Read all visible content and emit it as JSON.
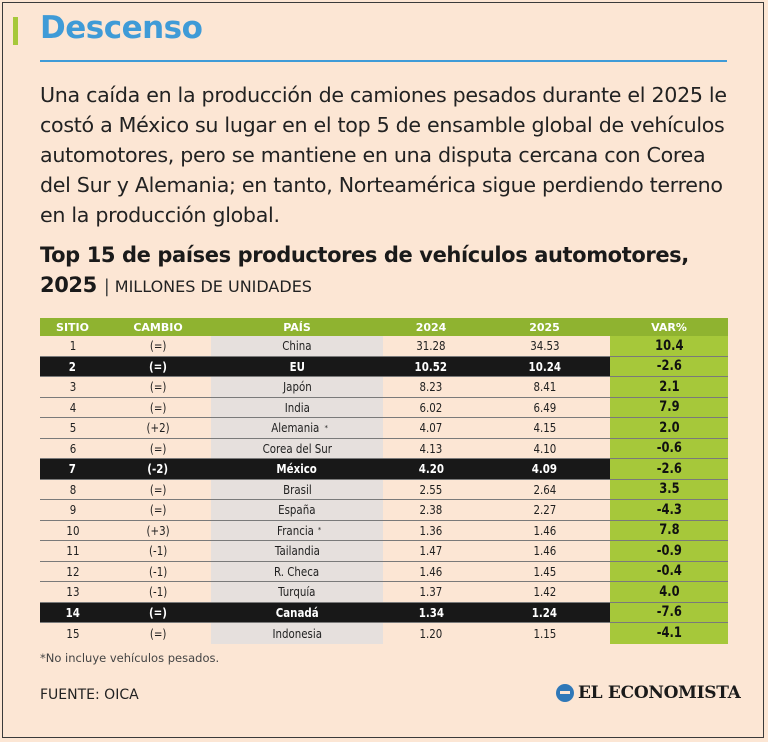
{
  "header": {
    "title": "Descenso",
    "intro": "Una caída en la producción de camiones pesados durante el 2025 le costó a México su lugar en el top 5 de ensamble global de vehículos automotores, pero se mantiene en una disputa cercana con Corea del Sur y Alemania; en tanto, Norteamérica sigue perdiendo terreno en la producción global."
  },
  "chart_data": {
    "type": "table",
    "title": "Top 15 de países productores de vehículos automotores, 2025",
    "unit": "MILLONES DE UNIDADES",
    "columns": [
      "SITIO",
      "CAMBIO",
      "PAÍS",
      "2024",
      "2025",
      "VAR%"
    ],
    "rows": [
      {
        "sitio": "1",
        "cambio": "(=)",
        "pais": "China",
        "y2024": "31.28",
        "y2025": "34.53",
        "var": "10.4",
        "highlight": false,
        "note": false
      },
      {
        "sitio": "2",
        "cambio": "(=)",
        "pais": "EU",
        "y2024": "10.52",
        "y2025": "10.24",
        "var": "-2.6",
        "highlight": true,
        "note": false
      },
      {
        "sitio": "3",
        "cambio": "(=)",
        "pais": "Japón",
        "y2024": "8.23",
        "y2025": "8.41",
        "var": "2.1",
        "highlight": false,
        "note": false
      },
      {
        "sitio": "4",
        "cambio": "(=)",
        "pais": "India",
        "y2024": "6.02",
        "y2025": "6.49",
        "var": "7.9",
        "highlight": false,
        "note": false
      },
      {
        "sitio": "5",
        "cambio": "(+2)",
        "pais": "Alemania",
        "y2024": "4.07",
        "y2025": "4.15",
        "var": "2.0",
        "highlight": false,
        "note": true
      },
      {
        "sitio": "6",
        "cambio": "(=)",
        "pais": "Corea del Sur",
        "y2024": "4.13",
        "y2025": "4.10",
        "var": "-0.6",
        "highlight": false,
        "note": false
      },
      {
        "sitio": "7",
        "cambio": "(-2)",
        "pais": "México",
        "y2024": "4.20",
        "y2025": "4.09",
        "var": "-2.6",
        "highlight": true,
        "note": false
      },
      {
        "sitio": "8",
        "cambio": "(=)",
        "pais": "Brasil",
        "y2024": "2.55",
        "y2025": "2.64",
        "var": "3.5",
        "highlight": false,
        "note": false
      },
      {
        "sitio": "9",
        "cambio": "(=)",
        "pais": "España",
        "y2024": "2.38",
        "y2025": "2.27",
        "var": "-4.3",
        "highlight": false,
        "note": false
      },
      {
        "sitio": "10",
        "cambio": "(+3)",
        "pais": "Francia",
        "y2024": "1.36",
        "y2025": "1.46",
        "var": "7.8",
        "highlight": false,
        "note": true
      },
      {
        "sitio": "11",
        "cambio": "(-1)",
        "pais": "Tailandia",
        "y2024": "1.47",
        "y2025": "1.46",
        "var": "-0.9",
        "highlight": false,
        "note": false
      },
      {
        "sitio": "12",
        "cambio": "(-1)",
        "pais": "R. Checa",
        "y2024": "1.46",
        "y2025": "1.45",
        "var": "-0.4",
        "highlight": false,
        "note": false
      },
      {
        "sitio": "13",
        "cambio": "(-1)",
        "pais": "Turquía",
        "y2024": "1.37",
        "y2025": "1.42",
        "var": "4.0",
        "highlight": false,
        "note": false
      },
      {
        "sitio": "14",
        "cambio": "(=)",
        "pais": "Canadá",
        "y2024": "1.34",
        "y2025": "1.24",
        "var": "-7.6",
        "highlight": true,
        "note": false
      },
      {
        "sitio": "15",
        "cambio": "(=)",
        "pais": "Indonesia",
        "y2024": "1.20",
        "y2025": "1.15",
        "var": "-4.1",
        "highlight": false,
        "note": false
      }
    ]
  },
  "footer": {
    "footnote": "*No incluye vehículos pesados.",
    "note_mark": "*",
    "source": "FUENTE: OICA",
    "brand": "EL ECONOMISTA"
  },
  "colors": {
    "background": "#fce6d4",
    "title_blue": "#3f9bd7",
    "accent_green": "#a6c83a",
    "header_green": "#8fb330",
    "highlight_row": "#181818"
  }
}
